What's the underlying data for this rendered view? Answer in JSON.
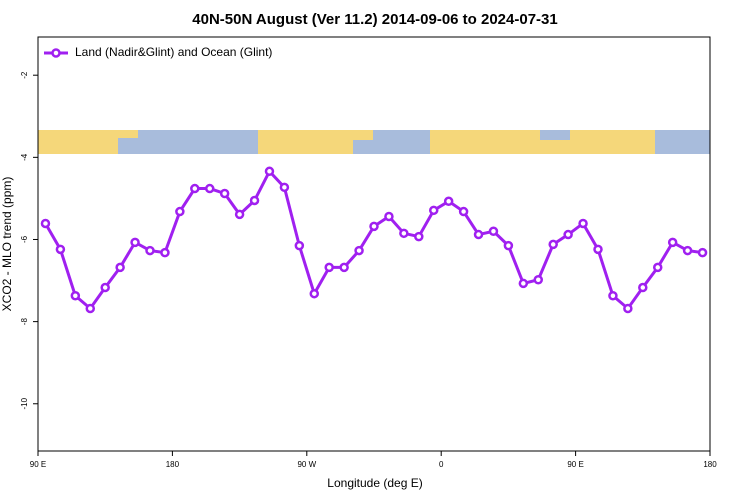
{
  "chart_data": {
    "type": "line",
    "title": "40N-50N August (Ver 11.2)   2014-09-06 to 2024-07-31",
    "x_label": "Longitude (deg E)",
    "y_label": "XCO2 - MLO trend (ppm)",
    "xlim": [
      90,
      540
    ],
    "xticks": [
      {
        "value": 90,
        "label": "90 E"
      },
      {
        "value": 180,
        "label": "180"
      },
      {
        "value": 270,
        "label": "90 W"
      },
      {
        "value": 360,
        "label": "0"
      },
      {
        "value": 450,
        "label": "90 E"
      },
      {
        "value": 540,
        "label": "180"
      }
    ],
    "ylim": [
      -11.15,
      -1.07
    ],
    "yticks": [
      -2,
      -4,
      -6,
      -8,
      -10
    ],
    "legend": "top-left",
    "x": [
      95,
      105,
      115,
      125,
      135,
      145,
      155,
      165,
      175,
      185,
      195,
      205,
      215,
      225,
      235,
      245,
      255,
      265,
      275,
      285,
      295,
      305,
      315,
      325,
      335,
      345,
      355,
      365,
      375,
      385,
      395,
      405,
      415,
      425,
      435,
      445,
      455,
      465,
      475,
      485,
      495,
      505,
      515,
      525,
      535
    ],
    "series": [
      {
        "name": "Land (Nadir&Glint) and Ocean (Glint)",
        "color": "#a020f0",
        "values": [
          -5.61,
          -6.24,
          -7.37,
          -7.68,
          -7.17,
          -6.68,
          -6.07,
          -6.27,
          -6.32,
          -5.32,
          -4.76,
          -4.76,
          -4.88,
          -5.39,
          -5.05,
          -4.34,
          -4.73,
          -6.15,
          -7.32,
          -6.68,
          -6.68,
          -6.27,
          -5.68,
          -5.44,
          -5.85,
          -5.93,
          -5.29,
          -5.07,
          -5.32,
          -5.88,
          -5.8,
          -6.15,
          -7.07,
          -6.98,
          -6.12,
          -5.88,
          -5.61,
          -6.24,
          -7.37,
          -7.68,
          -7.17,
          -6.68,
          -6.07,
          -6.27,
          -6.32
        ]
      }
    ]
  }
}
